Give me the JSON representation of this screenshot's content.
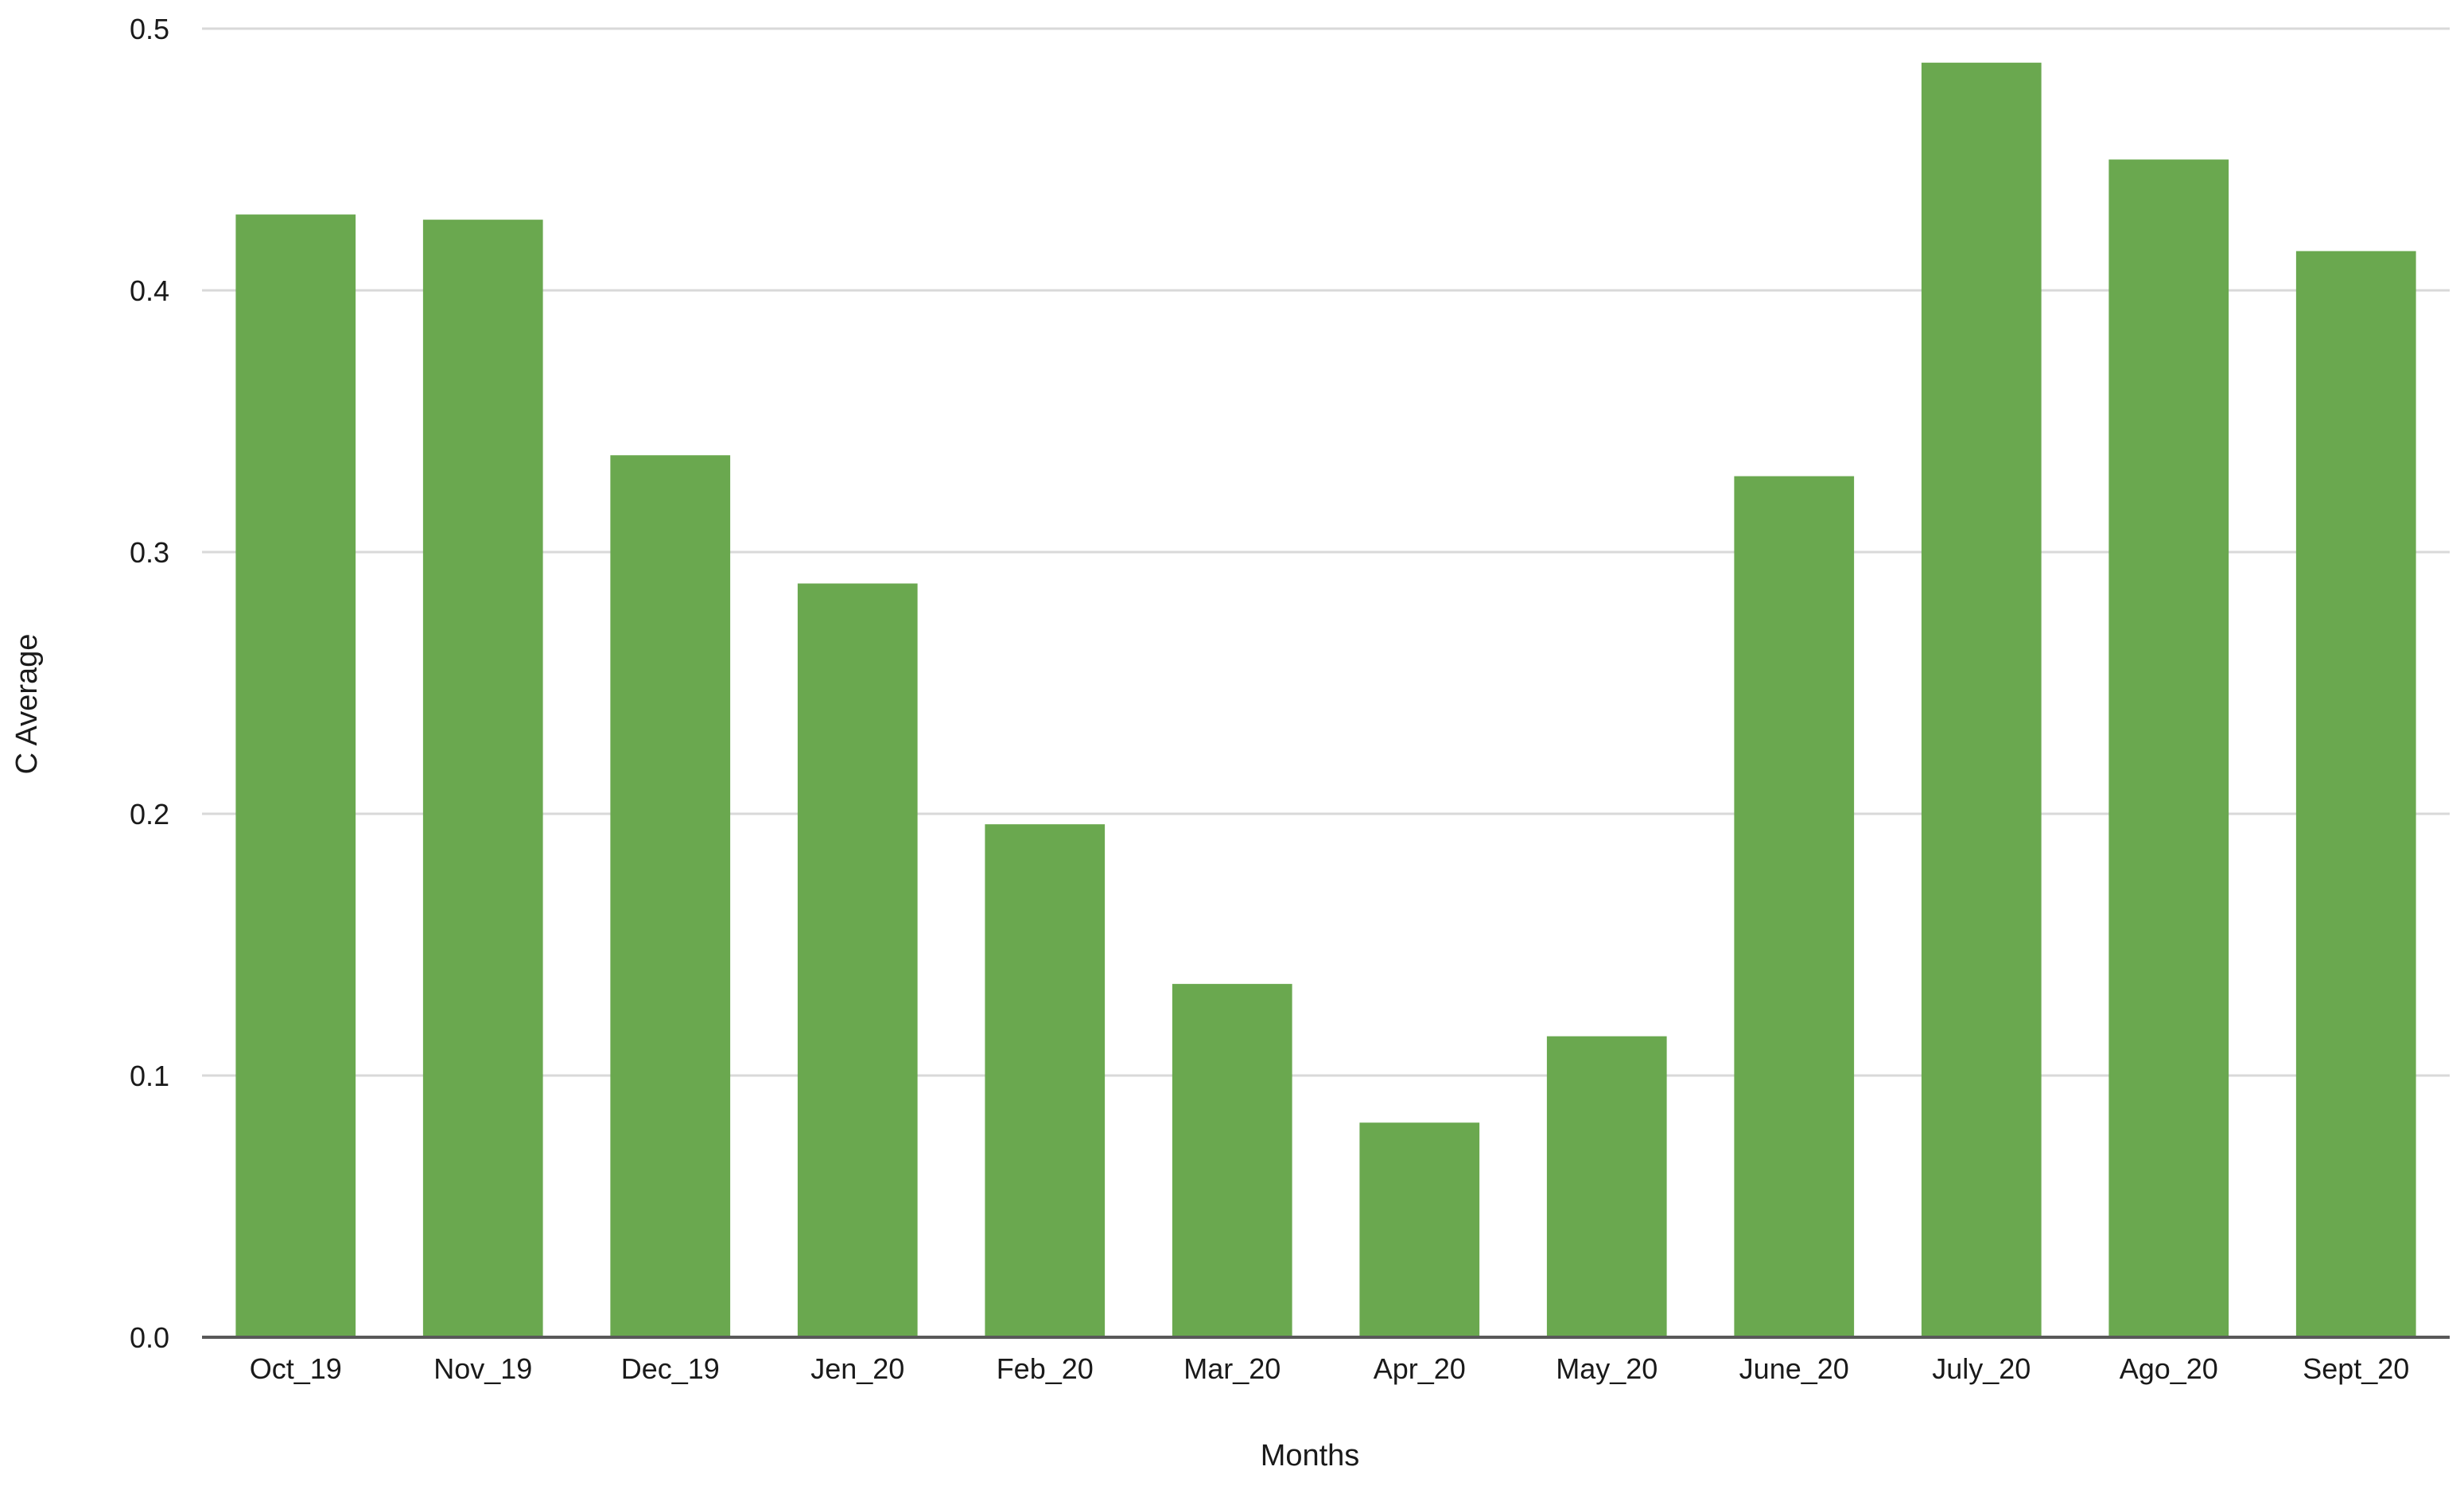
{
  "chart_data": {
    "type": "bar",
    "title": "",
    "xlabel": "Months",
    "ylabel": "C Average",
    "categories": [
      "Oct_19",
      "Nov_19",
      "Dec_19",
      "Jen_20",
      "Feb_20",
      "Mar_20",
      "Apr_20",
      "May_20",
      "June_20",
      "July_20",
      "Ago_20",
      "Sept_20"
    ],
    "values": [
      0.429,
      0.427,
      0.337,
      0.288,
      0.196,
      0.135,
      0.082,
      0.115,
      0.329,
      0.487,
      0.45,
      0.415
    ],
    "ylim": [
      0,
      0.5
    ],
    "yticks": [
      "0.0",
      "0.1",
      "0.2",
      "0.3",
      "0.4",
      "0.5"
    ],
    "grid": true,
    "legend": "none",
    "colors": {
      "bar": "#6aa84f",
      "grid": "#d9d9d9",
      "axis": "#595959"
    }
  }
}
